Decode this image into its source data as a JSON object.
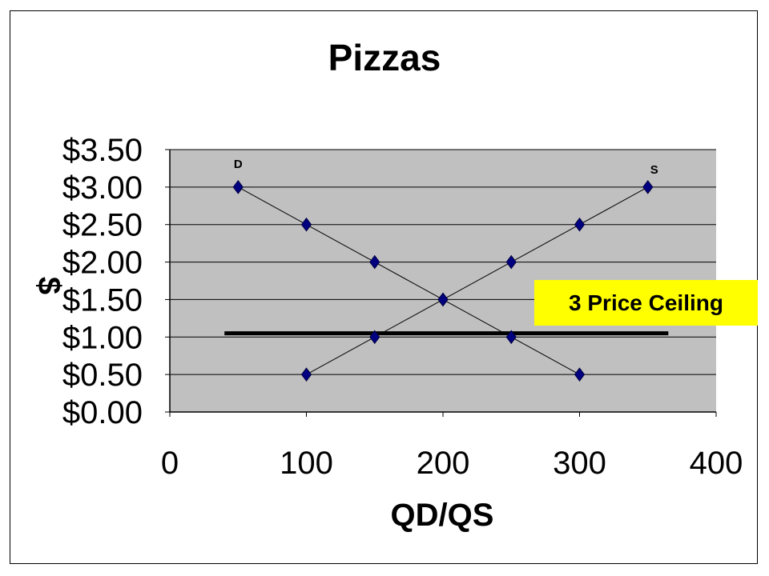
{
  "chart_data": {
    "type": "scatter",
    "title": "Pizzas",
    "xlabel": "QD/QS",
    "ylabel": "$",
    "xlim": [
      0,
      400
    ],
    "ylim": [
      0,
      3.5
    ],
    "x_ticks": [
      "0",
      "100",
      "200",
      "300",
      "400"
    ],
    "y_ticks": [
      "$0.00",
      "$0.50",
      "$1.00",
      "$1.50",
      "$2.00",
      "$2.50",
      "$3.00",
      "$3.50"
    ],
    "grid": "horizontal",
    "plot_area_color": "#c0c0c0",
    "marker_color": "#000080",
    "series": [
      {
        "name": "D",
        "x": [
          50,
          100,
          150,
          200,
          250,
          300
        ],
        "y": [
          3.0,
          2.5,
          2.0,
          1.5,
          1.0,
          0.5
        ]
      },
      {
        "name": "S",
        "x": [
          100,
          150,
          200,
          250,
          300,
          350
        ],
        "y": [
          0.5,
          1.0,
          1.5,
          2.0,
          2.5,
          3.0
        ]
      }
    ],
    "price_ceiling": {
      "y": 1.05,
      "x_range": [
        40,
        365
      ],
      "label": "3 Price Ceiling",
      "label_bg": "#ffff00"
    }
  }
}
